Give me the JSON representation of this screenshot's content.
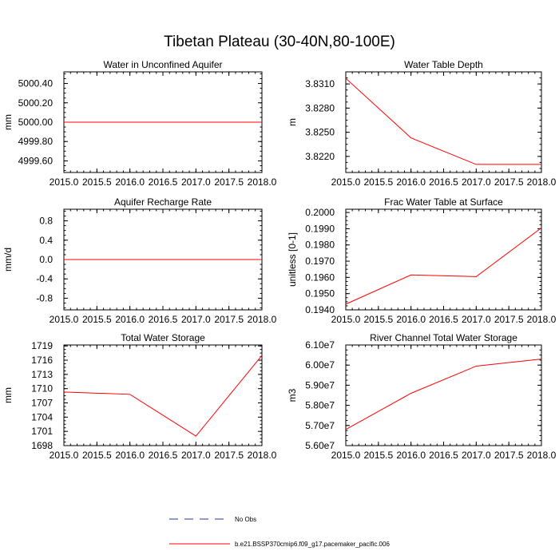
{
  "figure_title": "Tibetan Plateau (30-40N,80-100E)",
  "legend": [
    {
      "label": "No Obs",
      "color": "#1f3a93",
      "dash": true
    },
    {
      "label": "b.e21.BSSP370cmip6.f09_g17.pacemaker_pacific.006",
      "color": "#ff0000",
      "dash": false
    }
  ],
  "chart_data": [
    {
      "type": "line",
      "title": "Water in Unconfined Aquifer",
      "ylabel": "mm",
      "x": [
        2015,
        2016,
        2017,
        2018
      ],
      "xlim": [
        2015,
        2018
      ],
      "xticks": [
        "2015.0",
        "2015.5",
        "2016.0",
        "2016.5",
        "2017.0",
        "2017.5",
        "2018.0"
      ],
      "yticks": [
        "4999.60",
        "4999.80",
        "5000.00",
        "5000.20",
        "5000.40"
      ],
      "ylim": [
        4999.48,
        5000.52
      ],
      "series": [
        {
          "values": [
            5000.0,
            5000.0,
            5000.0,
            5000.0
          ],
          "color": "#ff0000"
        }
      ]
    },
    {
      "type": "line",
      "title": "Water Table Depth",
      "ylabel": "m",
      "x": [
        2015,
        2016,
        2017,
        2018
      ],
      "xlim": [
        2015,
        2018
      ],
      "xticks": [
        "2015.0",
        "2015.5",
        "2016.0",
        "2016.5",
        "2017.0",
        "2017.5",
        "2018.0"
      ],
      "yticks": [
        "3.8220",
        "3.8250",
        "3.8280",
        "3.8310"
      ],
      "ylim": [
        3.82,
        3.8325
      ],
      "series": [
        {
          "values": [
            3.8317,
            3.8243,
            3.821,
            3.821
          ],
          "color": "#ff0000"
        }
      ]
    },
    {
      "type": "line",
      "title": "Aquifer Recharge Rate",
      "ylabel": "mm/d",
      "x": [
        2015,
        2016,
        2017,
        2018
      ],
      "xlim": [
        2015,
        2018
      ],
      "xticks": [
        "2015.0",
        "2015.5",
        "2016.0",
        "2016.5",
        "2017.0",
        "2017.5",
        "2018.0"
      ],
      "yticks": [
        "-0.8",
        "-0.4",
        "0.0",
        "0.4",
        "0.8"
      ],
      "ylim": [
        -1.04,
        1.04
      ],
      "series": [
        {
          "values": [
            0.0,
            0.0,
            0.0,
            0.0
          ],
          "color": "#ff0000"
        }
      ]
    },
    {
      "type": "line",
      "title": "Frac Water Table at Surface",
      "ylabel": "unitless [0-1]",
      "x": [
        2015,
        2016,
        2017,
        2018
      ],
      "xlim": [
        2015,
        2018
      ],
      "xticks": [
        "2015.0",
        "2015.5",
        "2016.0",
        "2016.5",
        "2017.0",
        "2017.5",
        "2018.0"
      ],
      "yticks": [
        "0.1940",
        "0.1950",
        "0.1960",
        "0.1970",
        "0.1980",
        "0.1990",
        "0.2000"
      ],
      "ylim": [
        0.194,
        0.2002
      ],
      "series": [
        {
          "values": [
            0.19435,
            0.19615,
            0.19605,
            0.19905
          ],
          "color": "#ff0000"
        }
      ]
    },
    {
      "type": "line",
      "title": "Total Water Storage",
      "ylabel": "mm",
      "x": [
        2015,
        2016,
        2017,
        2018
      ],
      "xlim": [
        2015,
        2018
      ],
      "xticks": [
        "2015.0",
        "2015.5",
        "2016.0",
        "2016.5",
        "2017.0",
        "2017.5",
        "2018.0"
      ],
      "yticks": [
        "1698",
        "1701",
        "1704",
        "1707",
        "1710",
        "1713",
        "1716",
        "1719"
      ],
      "ylim": [
        1698,
        1719.2
      ],
      "series": [
        {
          "values": [
            1709.3,
            1708.8,
            1700.0,
            1717.0
          ],
          "color": "#ff0000"
        }
      ]
    },
    {
      "type": "line",
      "title": "River Channel Total Water Storage",
      "ylabel": "m3",
      "x": [
        2015,
        2016,
        2017,
        2018
      ],
      "xlim": [
        2015,
        2018
      ],
      "xticks": [
        "2015.0",
        "2015.5",
        "2016.0",
        "2016.5",
        "2017.0",
        "2017.5",
        "2018.0"
      ],
      "yticks": [
        "5.60e7",
        "5.70e7",
        "5.80e7",
        "5.90e7",
        "6.00e7",
        "6.10e7"
      ],
      "ylim": [
        56000000,
        61000000
      ],
      "series": [
        {
          "values": [
            56800000,
            58600000,
            59950000,
            60300000
          ],
          "color": "#ff0000"
        }
      ]
    }
  ]
}
